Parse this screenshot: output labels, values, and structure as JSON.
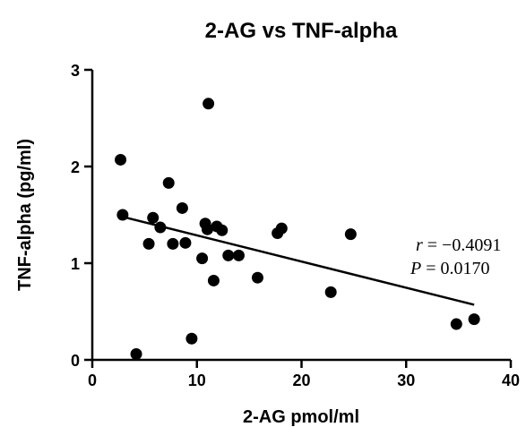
{
  "chart_data": {
    "type": "scatter",
    "title": "2-AG vs TNF-alpha",
    "xlabel": "2-AG pmol/ml",
    "ylabel": "TNF-alpha (pg/ml)",
    "xlim": [
      0,
      40
    ],
    "ylim": [
      0,
      3
    ],
    "xticks": [
      0,
      10,
      20,
      30,
      40
    ],
    "yticks": [
      0,
      1,
      2,
      3
    ],
    "grid": false,
    "legend": "none",
    "points": [
      {
        "x": 2.7,
        "y": 2.07
      },
      {
        "x": 2.9,
        "y": 1.5
      },
      {
        "x": 4.2,
        "y": 0.06
      },
      {
        "x": 5.4,
        "y": 1.2
      },
      {
        "x": 5.8,
        "y": 1.47
      },
      {
        "x": 6.5,
        "y": 1.37
      },
      {
        "x": 7.3,
        "y": 1.83
      },
      {
        "x": 7.7,
        "y": 1.2
      },
      {
        "x": 8.6,
        "y": 1.57
      },
      {
        "x": 8.9,
        "y": 1.21
      },
      {
        "x": 9.5,
        "y": 0.22
      },
      {
        "x": 10.5,
        "y": 1.05
      },
      {
        "x": 10.8,
        "y": 1.41
      },
      {
        "x": 11.0,
        "y": 1.35
      },
      {
        "x": 11.1,
        "y": 2.65
      },
      {
        "x": 11.6,
        "y": 0.82
      },
      {
        "x": 11.9,
        "y": 1.38
      },
      {
        "x": 12.4,
        "y": 1.34
      },
      {
        "x": 13.0,
        "y": 1.08
      },
      {
        "x": 14.0,
        "y": 1.08
      },
      {
        "x": 15.8,
        "y": 0.85
      },
      {
        "x": 17.7,
        "y": 1.31
      },
      {
        "x": 18.1,
        "y": 1.36
      },
      {
        "x": 22.8,
        "y": 0.7
      },
      {
        "x": 24.7,
        "y": 1.3
      },
      {
        "x": 34.8,
        "y": 0.37
      },
      {
        "x": 36.5,
        "y": 0.42
      }
    ],
    "trendline": {
      "x": [
        2.9,
        36.5
      ],
      "y": [
        1.48,
        0.57
      ]
    },
    "annotations": {
      "r_symbol": "r",
      "r_value": " = −0.4091",
      "p_symbol": "P",
      "p_value": " = 0.0170"
    }
  }
}
